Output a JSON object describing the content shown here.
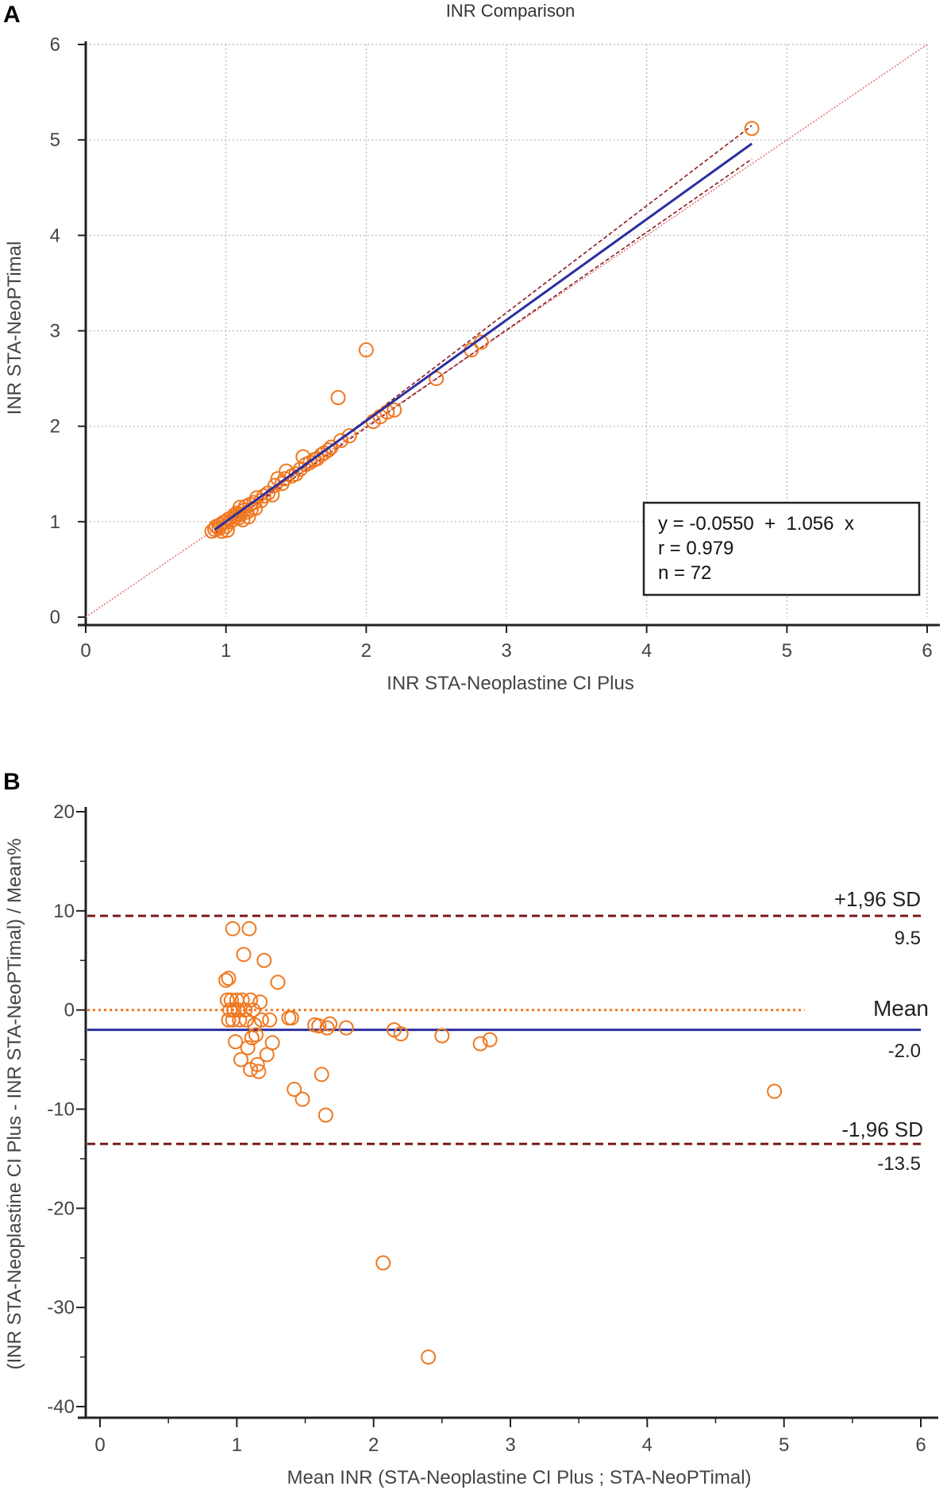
{
  "chart_data": [
    {
      "panel_label": "A",
      "type": "scatter",
      "title": "INR Comparison",
      "xlabel": "INR STA-Neoplastine CI Plus",
      "ylabel": "INR STA-NeoPTimal",
      "xlim": [
        0,
        6
      ],
      "ylim": [
        0,
        6
      ],
      "xticks": [
        0,
        1,
        2,
        3,
        4,
        5,
        6
      ],
      "yticks": [
        0,
        1,
        2,
        3,
        4,
        5,
        6
      ],
      "grid": true,
      "marker_color": "#f07820",
      "points": [
        {
          "x": 0.9,
          "y": 0.9
        },
        {
          "x": 0.92,
          "y": 0.92
        },
        {
          "x": 0.93,
          "y": 0.95
        },
        {
          "x": 0.95,
          "y": 0.93
        },
        {
          "x": 0.96,
          "y": 0.97
        },
        {
          "x": 0.97,
          "y": 0.9
        },
        {
          "x": 0.98,
          "y": 0.99
        },
        {
          "x": 1.0,
          "y": 1.0
        },
        {
          "x": 1.0,
          "y": 0.95
        },
        {
          "x": 1.01,
          "y": 0.91
        },
        {
          "x": 1.02,
          "y": 1.03
        },
        {
          "x": 1.03,
          "y": 1.0
        },
        {
          "x": 1.05,
          "y": 1.02
        },
        {
          "x": 1.06,
          "y": 1.07
        },
        {
          "x": 1.07,
          "y": 1.05
        },
        {
          "x": 1.08,
          "y": 1.09
        },
        {
          "x": 1.09,
          "y": 1.04
        },
        {
          "x": 1.1,
          "y": 1.15
        },
        {
          "x": 1.1,
          "y": 1.08
        },
        {
          "x": 1.12,
          "y": 1.02
        },
        {
          "x": 1.13,
          "y": 1.12
        },
        {
          "x": 1.14,
          "y": 1.16
        },
        {
          "x": 1.15,
          "y": 1.1
        },
        {
          "x": 1.16,
          "y": 1.05
        },
        {
          "x": 1.17,
          "y": 1.18
        },
        {
          "x": 1.18,
          "y": 1.13
        },
        {
          "x": 1.2,
          "y": 1.2
        },
        {
          "x": 1.21,
          "y": 1.14
        },
        {
          "x": 1.22,
          "y": 1.25
        },
        {
          "x": 1.25,
          "y": 1.22
        },
        {
          "x": 1.27,
          "y": 1.27
        },
        {
          "x": 1.3,
          "y": 1.3
        },
        {
          "x": 1.33,
          "y": 1.28
        },
        {
          "x": 1.35,
          "y": 1.38
        },
        {
          "x": 1.37,
          "y": 1.45
        },
        {
          "x": 1.4,
          "y": 1.4
        },
        {
          "x": 1.42,
          "y": 1.45
        },
        {
          "x": 1.43,
          "y": 1.53
        },
        {
          "x": 1.47,
          "y": 1.48
        },
        {
          "x": 1.5,
          "y": 1.5
        },
        {
          "x": 1.53,
          "y": 1.55
        },
        {
          "x": 1.55,
          "y": 1.68
        },
        {
          "x": 1.57,
          "y": 1.6
        },
        {
          "x": 1.6,
          "y": 1.62
        },
        {
          "x": 1.63,
          "y": 1.65
        },
        {
          "x": 1.65,
          "y": 1.66
        },
        {
          "x": 1.68,
          "y": 1.7
        },
        {
          "x": 1.7,
          "y": 1.72
        },
        {
          "x": 1.73,
          "y": 1.75
        },
        {
          "x": 1.75,
          "y": 1.78
        },
        {
          "x": 1.8,
          "y": 2.3
        },
        {
          "x": 1.82,
          "y": 1.85
        },
        {
          "x": 1.88,
          "y": 1.9
        },
        {
          "x": 2.0,
          "y": 2.8
        },
        {
          "x": 2.05,
          "y": 2.05
        },
        {
          "x": 2.1,
          "y": 2.1
        },
        {
          "x": 2.15,
          "y": 2.15
        },
        {
          "x": 2.2,
          "y": 2.17
        },
        {
          "x": 2.5,
          "y": 2.5
        },
        {
          "x": 2.75,
          "y": 2.8
        },
        {
          "x": 2.82,
          "y": 2.88
        },
        {
          "x": 4.75,
          "y": 5.12
        }
      ],
      "regression": {
        "intercept": -0.055,
        "slope": 1.056,
        "x_range": [
          0.92,
          4.75
        ]
      },
      "ci_lines": [
        {
          "x": [
            0.92,
            4.75
          ],
          "y": [
            0.86,
            5.15
          ]
        },
        {
          "x": [
            0.92,
            4.75
          ],
          "y": [
            0.88,
            4.8
          ]
        }
      ],
      "identity_line": {
        "x": [
          0,
          6
        ],
        "y": [
          0,
          6
        ]
      },
      "annotation": {
        "line1": "y = -0.0550  +  1.056  x",
        "line2": "r = 0.979",
        "line3": "n = 72",
        "position": "bottom-right"
      }
    },
    {
      "panel_label": "B",
      "type": "scatter",
      "title": "",
      "xlabel": "Mean INR (STA-Neoplastine CI Plus ; STA-NeoPTimal)",
      "ylabel": "(INR STA-Neoplastine CI Plus - INR STA-NeoPTimal) / Mean%",
      "xlim": [
        0,
        6
      ],
      "ylim": [
        -40,
        20
      ],
      "xticks": [
        0,
        1,
        2,
        3,
        4,
        5,
        6
      ],
      "yticks": [
        -40,
        -30,
        -20,
        -10,
        0,
        10,
        20
      ],
      "grid": false,
      "marker_color": "#f07820",
      "points": [
        {
          "x": 0.92,
          "y": 3.0
        },
        {
          "x": 0.94,
          "y": 3.2
        },
        {
          "x": 0.93,
          "y": 1.0
        },
        {
          "x": 0.95,
          "y": 0.0
        },
        {
          "x": 0.94,
          "y": -1.0
        },
        {
          "x": 0.97,
          "y": 8.2
        },
        {
          "x": 0.96,
          "y": 1.0
        },
        {
          "x": 0.98,
          "y": 0.0
        },
        {
          "x": 0.97,
          "y": -1.0
        },
        {
          "x": 0.99,
          "y": -3.2
        },
        {
          "x": 1.0,
          "y": 1.0
        },
        {
          "x": 1.01,
          "y": 0.0
        },
        {
          "x": 1.02,
          "y": -1.0
        },
        {
          "x": 1.03,
          "y": -5.0
        },
        {
          "x": 1.04,
          "y": 1.0
        },
        {
          "x": 1.05,
          "y": 5.6
        },
        {
          "x": 1.06,
          "y": 0.0
        },
        {
          "x": 1.07,
          "y": -1.0
        },
        {
          "x": 1.08,
          "y": -3.8
        },
        {
          "x": 1.09,
          "y": 8.2
        },
        {
          "x": 1.1,
          "y": 1.0
        },
        {
          "x": 1.11,
          "y": -2.8
        },
        {
          "x": 1.1,
          "y": -6.0
        },
        {
          "x": 1.12,
          "y": 0.0
        },
        {
          "x": 1.13,
          "y": -1.5
        },
        {
          "x": 1.14,
          "y": -2.5
        },
        {
          "x": 1.15,
          "y": -5.5
        },
        {
          "x": 1.16,
          "y": -6.2
        },
        {
          "x": 1.17,
          "y": 0.8
        },
        {
          "x": 1.18,
          "y": -1.0
        },
        {
          "x": 1.2,
          "y": 5.0
        },
        {
          "x": 1.22,
          "y": -4.5
        },
        {
          "x": 1.24,
          "y": -1.0
        },
        {
          "x": 1.26,
          "y": -3.3
        },
        {
          "x": 1.3,
          "y": 2.8
        },
        {
          "x": 1.38,
          "y": -0.8
        },
        {
          "x": 1.4,
          "y": -0.8
        },
        {
          "x": 1.42,
          "y": -8.0
        },
        {
          "x": 1.48,
          "y": -9.0
        },
        {
          "x": 1.57,
          "y": -1.5
        },
        {
          "x": 1.6,
          "y": -1.6
        },
        {
          "x": 1.62,
          "y": -6.5
        },
        {
          "x": 1.65,
          "y": -10.6
        },
        {
          "x": 1.66,
          "y": -1.8
        },
        {
          "x": 1.68,
          "y": -1.4
        },
        {
          "x": 1.8,
          "y": -1.8
        },
        {
          "x": 2.07,
          "y": -25.5
        },
        {
          "x": 2.15,
          "y": -2.0
        },
        {
          "x": 2.2,
          "y": -2.4
        },
        {
          "x": 2.4,
          "y": -35.0
        },
        {
          "x": 2.5,
          "y": -2.6
        },
        {
          "x": 2.78,
          "y": -3.4
        },
        {
          "x": 2.85,
          "y": -3.0
        },
        {
          "x": 4.93,
          "y": -8.2
        }
      ],
      "zero_line": {
        "y": 0,
        "x_end": 5.15,
        "color": "#f07820"
      },
      "mean_line": {
        "y": -2.0,
        "color": "#2b2f9e",
        "label": "Mean",
        "value": "-2.0"
      },
      "upper_loa": {
        "y": 9.5,
        "color": "#7a1a1a",
        "label": "+1,96 SD",
        "value": "9.5"
      },
      "lower_loa": {
        "y": -13.5,
        "color": "#7a1a1a",
        "label": "-1,96 SD",
        "value": "-13.5"
      }
    }
  ]
}
